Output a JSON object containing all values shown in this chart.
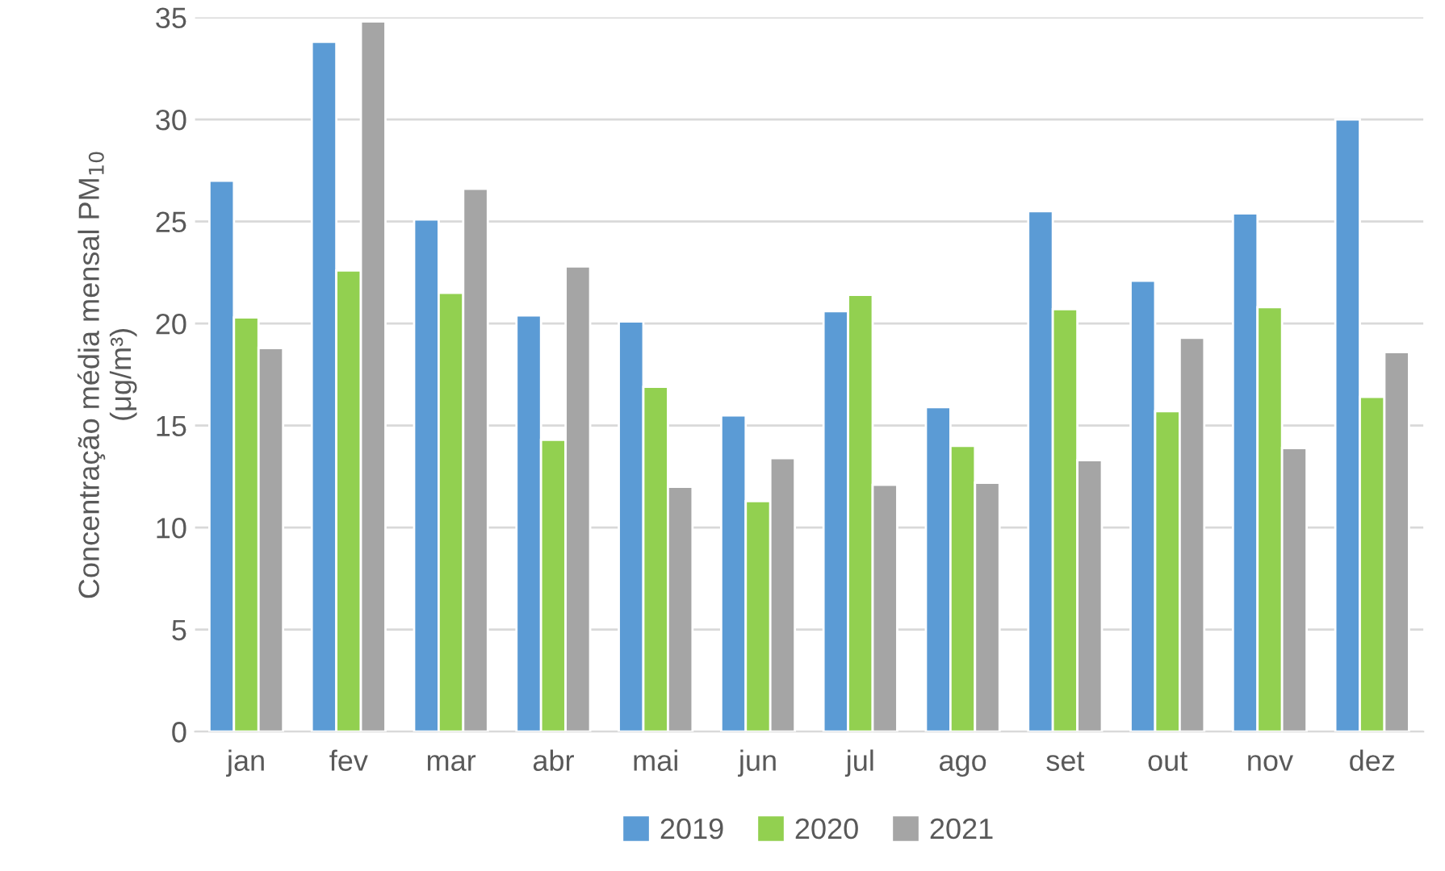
{
  "chart_data": {
    "type": "bar",
    "ylabel": "Concentração média mensal PM$_{10}$\n(μg/m³)",
    "categories": [
      "jan",
      "fev",
      "mar",
      "abr",
      "mai",
      "jun",
      "jul",
      "ago",
      "set",
      "out",
      "nov",
      "dez"
    ],
    "series": [
      {
        "name": "2019",
        "color": "#5b9bd5",
        "values": [
          27.0,
          33.8,
          25.1,
          20.4,
          20.1,
          15.5,
          20.6,
          15.9,
          25.5,
          22.1,
          25.4,
          30.0
        ]
      },
      {
        "name": "2020",
        "color": "#92d050",
        "values": [
          20.3,
          22.6,
          21.5,
          14.3,
          16.9,
          11.3,
          21.4,
          14.0,
          20.7,
          15.7,
          20.8,
          16.4
        ]
      },
      {
        "name": "2021",
        "color": "#a5a5a5",
        "values": [
          18.8,
          34.8,
          26.6,
          22.8,
          12.0,
          13.4,
          12.1,
          12.2,
          13.3,
          19.3,
          13.9,
          18.6
        ]
      }
    ],
    "ylim": [
      0,
      35
    ],
    "yticks": [
      0,
      5,
      10,
      15,
      20,
      25,
      30,
      35
    ],
    "grid": "y",
    "legend": "bottom"
  }
}
